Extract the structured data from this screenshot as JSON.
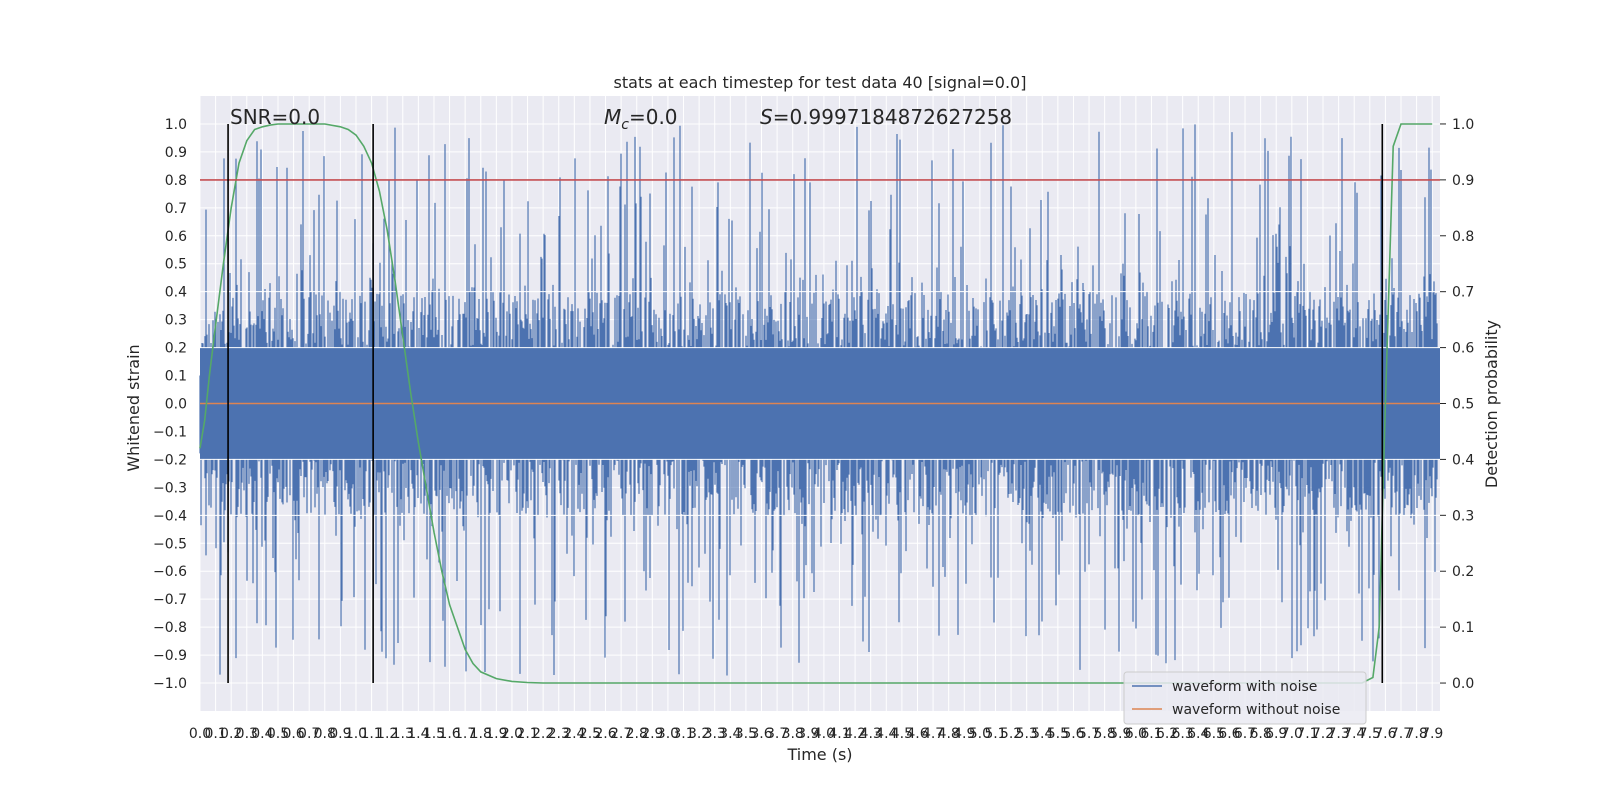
{
  "chart_data": {
    "type": "line",
    "title": "stats at each timestep for test data 40 [signal=0.0]",
    "xlabel": "Time (s)",
    "ylabel": "Whitened strain",
    "y2label": "Detection probability",
    "xlim": [
      0.0,
      7.95
    ],
    "ylim": [
      -1.1,
      1.1
    ],
    "y2lim": [
      -0.05,
      1.05
    ],
    "x_ticks": [
      0.0,
      0.1,
      0.2,
      0.3,
      0.4,
      0.5,
      0.6,
      0.7,
      0.8,
      0.9,
      1.0,
      1.1,
      1.2,
      1.3,
      1.4,
      1.5,
      1.6,
      1.7,
      1.8,
      1.9,
      2.0,
      2.1,
      2.2,
      2.3,
      2.4,
      2.5,
      2.6,
      2.7,
      2.8,
      2.9,
      3.0,
      3.1,
      3.2,
      3.3,
      3.4,
      3.5,
      3.6,
      3.7,
      3.8,
      3.9,
      4.0,
      4.1,
      4.2,
      4.3,
      4.4,
      4.5,
      4.6,
      4.7,
      4.8,
      4.9,
      5.0,
      5.1,
      5.2,
      5.3,
      5.4,
      5.5,
      5.6,
      5.7,
      5.8,
      5.9,
      6.0,
      6.1,
      6.2,
      6.3,
      6.4,
      6.5,
      6.6,
      6.7,
      6.8,
      6.9,
      7.0,
      7.1,
      7.2,
      7.3,
      7.4,
      7.5,
      7.6,
      7.7,
      7.8,
      7.9
    ],
    "x_tick_labels": [
      "0.0",
      "0.1",
      "0.2",
      "0.3",
      "0.4",
      "0.5",
      "0.6",
      "0.7",
      "0.8",
      "0.9",
      "1.0",
      "1.1",
      "1.2",
      "1.3",
      "1.4",
      "1.5",
      "1.6",
      "1.7",
      "1.8",
      "1.9",
      "2.0",
      "2.1",
      "2.2",
      "2.3",
      "2.4",
      "2.5",
      "2.6",
      "2.7",
      "2.8",
      "2.9",
      "3.0",
      "3.1",
      "3.2",
      "3.3",
      "3.4",
      "3.5",
      "3.6",
      "3.7",
      "3.8",
      "3.9",
      "4.0",
      "4.1",
      "4.2",
      "4.3",
      "4.4",
      "4.5",
      "4.6",
      "4.7",
      "4.8",
      "4.9",
      "5.0",
      "5.1",
      "5.2",
      "5.3",
      "5.4",
      "5.5",
      "5.6",
      "5.7",
      "5.8",
      "5.9",
      "6.0",
      "6.1",
      "6.2",
      "6.3",
      "6.4",
      "6.5",
      "6.6",
      "6.7",
      "6.8",
      "6.9",
      "7.0",
      "7.1",
      "7.2",
      "7.3",
      "7.4",
      "7.5",
      "7.6",
      "7.7",
      "7.8",
      "7.9"
    ],
    "y_ticks": [
      1.0,
      0.9,
      0.8,
      0.7,
      0.6,
      0.5,
      0.4,
      0.3,
      0.2,
      0.1,
      0.0,
      -0.1,
      -0.2,
      -0.3,
      -0.4,
      -0.5,
      -0.6,
      -0.7,
      -0.8,
      -0.9,
      -1.0
    ],
    "y_tick_labels": [
      "1.0",
      "0.9",
      "0.8",
      "0.7",
      "0.6",
      "0.5",
      "0.4",
      "0.3",
      "0.2",
      "0.1",
      "0.0",
      "−0.1",
      "−0.2",
      "−0.3",
      "−0.4",
      "−0.5",
      "−0.6",
      "−0.7",
      "−0.8",
      "−0.9",
      "−1.0"
    ],
    "y2_ticks": [
      1.0,
      0.9,
      0.8,
      0.7,
      0.6,
      0.5,
      0.4,
      0.3,
      0.2,
      0.1,
      0.0
    ],
    "y2_tick_labels": [
      "1.0",
      "0.9",
      "0.8",
      "0.7",
      "0.6",
      "0.5",
      "0.4",
      "0.3",
      "0.2",
      "0.1",
      "0.0"
    ],
    "grid": true,
    "legend_placement": "lower-right",
    "series": [
      {
        "name": "waveform with noise",
        "color": "#4c72b0",
        "axis": "left",
        "kind": "noise-waveform",
        "envelope_amplitude": 0.4,
        "peak_max": 1.0,
        "peak_min": -0.99
      },
      {
        "name": "waveform without noise",
        "color": "#dd8452",
        "axis": "left",
        "x": [
          0.0,
          7.95
        ],
        "y": [
          0.0,
          0.0
        ]
      },
      {
        "color": "#55a868",
        "axis": "right",
        "x": [
          0.0,
          0.03,
          0.06,
          0.1,
          0.15,
          0.2,
          0.25,
          0.3,
          0.35,
          0.4,
          0.45,
          0.5,
          0.6,
          0.7,
          0.8,
          0.9,
          0.95,
          1.0,
          1.05,
          1.1,
          1.15,
          1.2,
          1.25,
          1.3,
          1.35,
          1.4,
          1.45,
          1.5,
          1.55,
          1.6,
          1.65,
          1.7,
          1.75,
          1.8,
          1.9,
          2.0,
          2.1,
          2.2,
          3.0,
          4.0,
          5.0,
          6.0,
          7.0,
          7.45,
          7.52,
          7.56,
          7.6,
          7.65,
          7.7,
          7.8,
          7.9
        ],
        "y": [
          0.42,
          0.47,
          0.55,
          0.64,
          0.75,
          0.85,
          0.93,
          0.97,
          0.99,
          0.995,
          0.998,
          1.0,
          1.0,
          1.0,
          1.0,
          0.995,
          0.99,
          0.98,
          0.96,
          0.93,
          0.88,
          0.81,
          0.72,
          0.62,
          0.52,
          0.43,
          0.35,
          0.27,
          0.2,
          0.14,
          0.1,
          0.06,
          0.035,
          0.02,
          0.008,
          0.003,
          0.001,
          0.0,
          0.0,
          0.0,
          0.0,
          0.0,
          0.0,
          0.0,
          0.01,
          0.1,
          0.5,
          0.96,
          1.0,
          1.0,
          1.0
        ]
      },
      {
        "color": "#c44e52",
        "axis": "right",
        "x": [
          0.0,
          7.95
        ],
        "y": [
          0.9,
          0.9
        ]
      }
    ],
    "vertical_lines": {
      "color": "#000000",
      "axis": "right",
      "x": [
        0.18,
        1.11,
        7.58
      ],
      "ymin": 0.0,
      "ymax": 1.0
    },
    "annotations": {
      "snr": "SNR=0.0",
      "mc_symbol": "M",
      "mc_subscript": "c",
      "mc_value": "=0.0",
      "s_symbol": "S",
      "s_value": "=0.9997184872627258"
    }
  }
}
